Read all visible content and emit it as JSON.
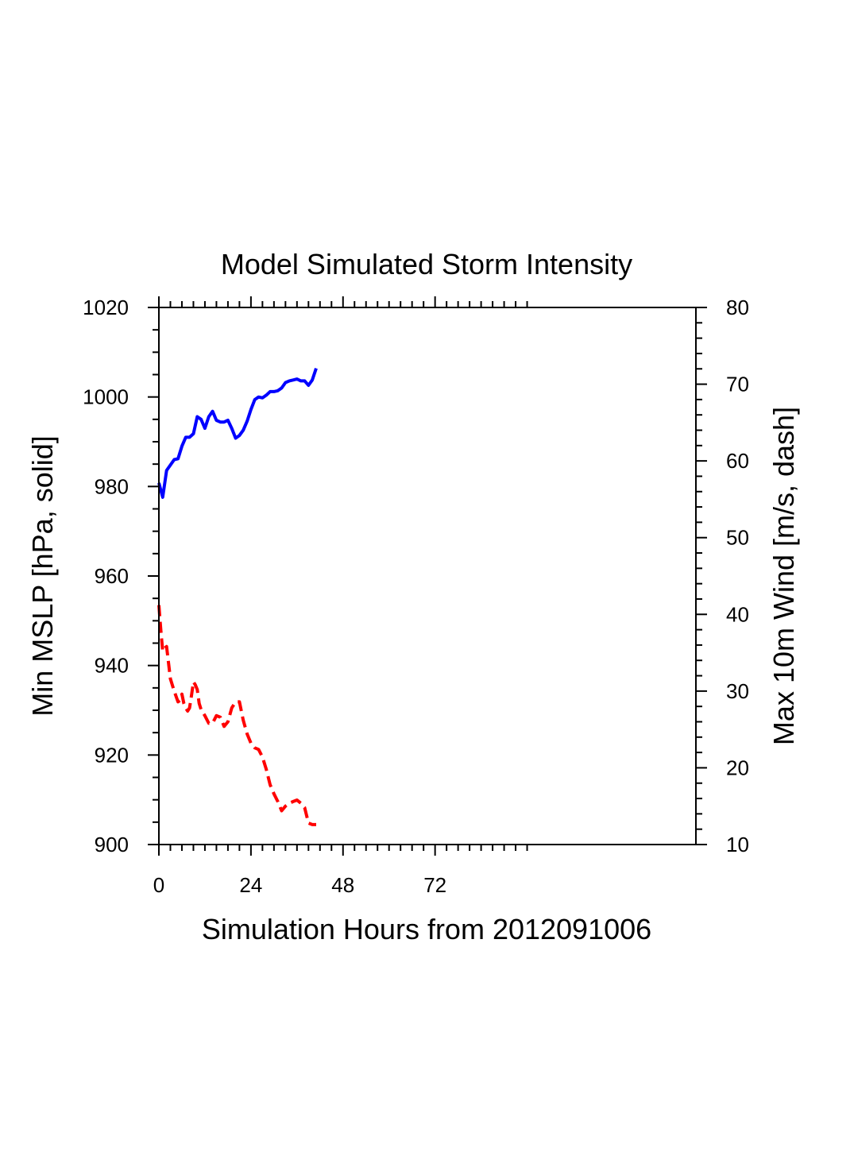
{
  "chart_data": {
    "type": "line",
    "title": "Model Simulated Storm Intensity",
    "xlabel": "Simulation Hours from 2012091006",
    "ylabel_left": "Min MSLP  [hPa, solid]",
    "ylabel_right": "Max 10m Wind  [m/s, dash]",
    "xlim": [
      0,
      140
    ],
    "ylim_left": [
      900,
      1020
    ],
    "ylim_right": [
      10,
      80
    ],
    "x_ticks": [
      0,
      24,
      48,
      72
    ],
    "y_left_ticks": [
      900,
      920,
      940,
      960,
      980,
      1000,
      1020
    ],
    "y_right_ticks": [
      10,
      20,
      30,
      40,
      50,
      60,
      70,
      80
    ],
    "grid": false,
    "series": [
      {
        "name": "Min MSLP",
        "axis": "left",
        "color": "#0000ff",
        "style": "solid",
        "x": [
          0,
          1,
          2,
          4,
          5,
          6,
          7,
          8,
          9,
          10,
          11,
          12,
          13,
          14,
          15,
          16,
          17,
          18,
          19,
          20,
          21,
          22,
          23,
          24,
          25,
          26,
          27,
          28,
          29,
          30,
          31,
          32,
          33,
          34,
          35,
          36,
          37,
          38,
          39,
          40,
          41
        ],
        "values": [
          980.8,
          977.6,
          983.6,
          986.0,
          986.2,
          989.0,
          991.0,
          991.0,
          991.8,
          995.6,
          995.0,
          993.0,
          995.6,
          996.8,
          994.8,
          994.4,
          994.4,
          994.8,
          993.0,
          990.8,
          991.4,
          992.6,
          994.6,
          997.2,
          999.4,
          1000.0,
          999.8,
          1000.4,
          1001.2,
          1001.2,
          1001.4,
          1002.0,
          1003.2,
          1003.6,
          1003.8,
          1004.0,
          1003.6,
          1003.6,
          1002.6,
          1003.8,
          1006.4
        ]
      },
      {
        "name": "Max 10m Wind",
        "axis": "right",
        "color": "#ff0000",
        "style": "dash",
        "x": [
          0,
          0.5,
          1,
          1.5,
          2,
          3,
          4,
          5,
          5.5,
          6,
          6.5,
          7,
          7.5,
          8,
          8.5,
          9,
          9.5,
          10,
          10.5,
          11,
          12,
          13,
          14,
          15,
          16,
          17,
          18,
          19,
          20,
          21,
          22,
          23,
          24,
          25,
          26,
          27,
          28,
          29,
          30,
          31,
          32,
          33,
          34,
          35,
          36,
          37,
          38,
          39,
          40,
          41
        ],
        "values": [
          41.2,
          38.0,
          35.2,
          35.6,
          35.8,
          31.6,
          30.0,
          28.6,
          28.8,
          29.6,
          28.4,
          27.8,
          27.4,
          27.8,
          29.4,
          31.2,
          30.8,
          30.2,
          28.4,
          27.6,
          26.8,
          25.8,
          25.8,
          26.8,
          26.6,
          25.4,
          26.0,
          27.8,
          28.6,
          28.6,
          26.2,
          24.4,
          23.2,
          22.6,
          22.4,
          21.4,
          19.8,
          17.8,
          16.6,
          15.6,
          14.4,
          15.0,
          15.4,
          15.6,
          15.8,
          15.4,
          14.8,
          12.8,
          12.6,
          12.6
        ]
      }
    ]
  }
}
